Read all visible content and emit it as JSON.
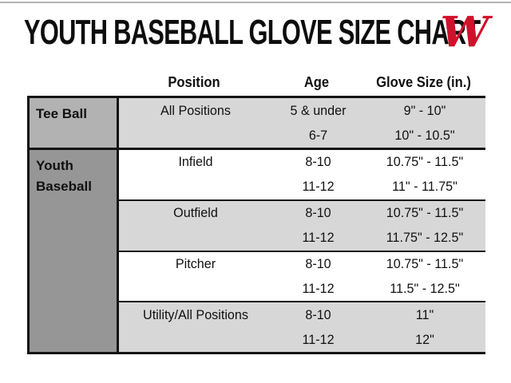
{
  "page": {
    "title": "YOUTH BASEBALL GLOVE SIZE CHART",
    "brand_letter": "W"
  },
  "colors": {
    "brand_red": "#d0112b",
    "category_teeball_bg": "#b2b2b2",
    "category_youth_bg": "#969696",
    "row_light_bg": "#d7d7d7",
    "row_white_bg": "#ffffff",
    "table_border": "#141414"
  },
  "table": {
    "headers": {
      "position": "Position",
      "age": "Age",
      "glove_size": "Glove Size (in.)"
    },
    "sections": [
      {
        "category": "Tee Ball",
        "groups": [
          {
            "position": "All Positions",
            "rows": [
              {
                "age": "5 & under",
                "size": "9\" - 10\""
              },
              {
                "age": "6-7",
                "size": "10\" - 10.5\""
              }
            ]
          }
        ]
      },
      {
        "category": "Youth Baseball",
        "groups": [
          {
            "position": "Infield",
            "rows": [
              {
                "age": "8-10",
                "size": "10.75\" - 11.5\""
              },
              {
                "age": "11-12",
                "size": "11\" - 11.75\""
              }
            ]
          },
          {
            "position": "Outfield",
            "rows": [
              {
                "age": "8-10",
                "size": "10.75\" - 11.5\""
              },
              {
                "age": "11-12",
                "size": "11.75\" - 12.5\""
              }
            ]
          },
          {
            "position": "Pitcher",
            "rows": [
              {
                "age": "8-10",
                "size": "10.75\" - 11.5\""
              },
              {
                "age": "11-12",
                "size": "11.5\" - 12.5\""
              }
            ]
          },
          {
            "position": "Utility/All Positions",
            "rows": [
              {
                "age": "8-10",
                "size": "11\""
              },
              {
                "age": "11-12",
                "size": "12\""
              }
            ]
          }
        ]
      }
    ]
  }
}
